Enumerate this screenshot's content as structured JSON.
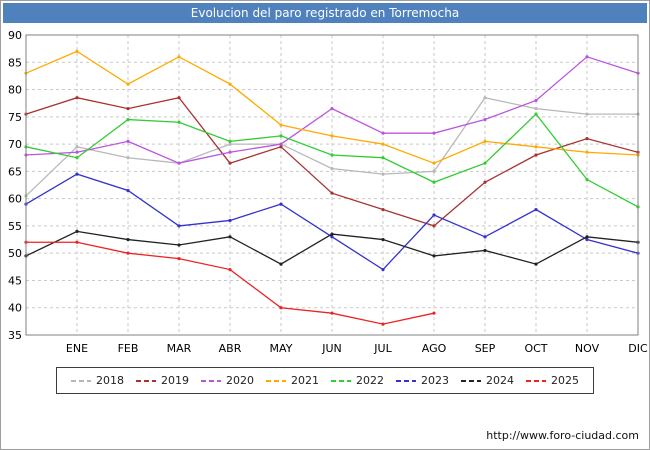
{
  "header": {
    "title": "Evolucion del paro registrado en Torremocha"
  },
  "footer": {
    "url": "http://www.foro-ciudad.com"
  },
  "chart_data": {
    "type": "line",
    "title": "Evolucion del paro registrado en Torremocha",
    "xlabel": "",
    "ylabel": "",
    "ylim": [
      35,
      90
    ],
    "ytick_step": 5,
    "grid": true,
    "grid_style": "dashed",
    "legend_position": "bottom",
    "x_labels": [
      "",
      "ENE",
      "FEB",
      "MAR",
      "ABR",
      "MAY",
      "JUN",
      "JUL",
      "AGO",
      "SEP",
      "OCT",
      "NOV",
      "DIC"
    ],
    "series": [
      {
        "name": "2018",
        "color": "#b8b8b8",
        "values": [
          60.5,
          69.5,
          67.5,
          66.5,
          70,
          70,
          65.5,
          64.5,
          65,
          78.5,
          76.5,
          75.5,
          75.5
        ]
      },
      {
        "name": "2019",
        "color": "#a83232",
        "values": [
          75.5,
          78.5,
          76.5,
          78.5,
          66.5,
          69.5,
          61,
          58,
          55,
          63,
          68,
          71,
          68.5
        ]
      },
      {
        "name": "2020",
        "color": "#bb55dd",
        "values": [
          68,
          68.5,
          70.5,
          66.5,
          68.5,
          70,
          76.5,
          72,
          72,
          74.5,
          78,
          86,
          83
        ]
      },
      {
        "name": "2021",
        "color": "#ffaa00",
        "values": [
          83,
          87,
          81,
          86,
          81,
          73.5,
          71.5,
          70,
          66.5,
          70.5,
          69.5,
          68.5,
          68
        ]
      },
      {
        "name": "2022",
        "color": "#33cc33",
        "values": [
          69.5,
          67.5,
          74.5,
          74,
          70.5,
          71.5,
          68,
          67.5,
          63,
          66.5,
          75.5,
          63.5,
          58.5
        ]
      },
      {
        "name": "2023",
        "color": "#3333cc",
        "values": [
          59,
          64.5,
          61.5,
          55,
          56,
          59,
          53,
          47,
          57,
          53,
          58,
          52.5,
          50
        ]
      },
      {
        "name": "2024",
        "color": "#222222",
        "values": [
          49.5,
          54,
          52.5,
          51.5,
          53,
          48,
          53.5,
          52.5,
          49.5,
          50.5,
          48,
          53,
          52
        ]
      },
      {
        "name": "2025",
        "color": "#ee2222",
        "values": [
          52,
          52,
          50,
          49,
          47,
          40,
          39,
          37,
          39
        ]
      }
    ]
  }
}
